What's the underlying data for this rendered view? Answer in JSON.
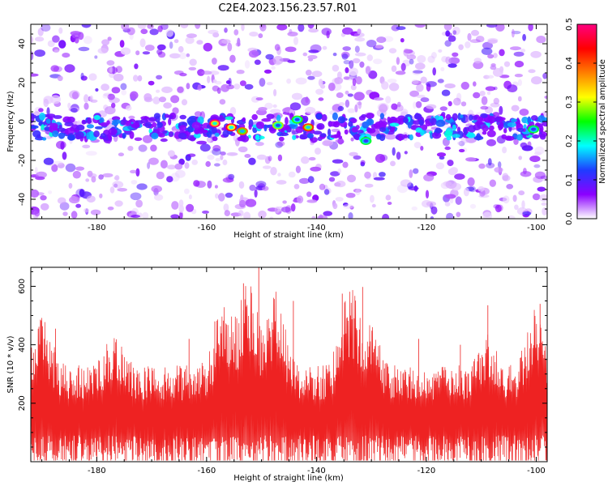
{
  "title": "C2E4.2023.156.23.57.R01",
  "chart_data": [
    {
      "type": "heatmap",
      "xlabel": "Height of straight line (km)",
      "ylabel": "Frequency (Hz)",
      "xlim": [
        -192,
        -98
      ],
      "ylim": [
        -50,
        50
      ],
      "xticks": [
        -180,
        -160,
        -140,
        -120,
        -100
      ],
      "yticks": [
        -40,
        -20,
        0,
        20,
        40
      ],
      "colorbar": {
        "label": "Normalized spectral amplitude",
        "range": [
          0.0,
          0.5
        ],
        "ticks": [
          0.0,
          0.1,
          0.2,
          0.3,
          0.4,
          0.5
        ],
        "colors": [
          "#ffffff",
          "#8b00ff",
          "#1e3cff",
          "#00ffff",
          "#00ff00",
          "#ffff00",
          "#ff7f00",
          "#ff0000",
          "#ff0080"
        ]
      },
      "band": {
        "center_frequency": -3,
        "halfwidth": 6,
        "hotspots": [
          {
            "x": -158.5,
            "y": -1,
            "value": 0.45
          },
          {
            "x": -155.5,
            "y": -3,
            "value": 0.42
          },
          {
            "x": -153.5,
            "y": -5,
            "value": 0.35
          },
          {
            "x": -147,
            "y": -2,
            "value": 0.25
          },
          {
            "x": -143.5,
            "y": 1,
            "value": 0.22
          },
          {
            "x": -141.5,
            "y": -3,
            "value": 0.38
          },
          {
            "x": -131,
            "y": -10,
            "value": 0.2
          },
          {
            "x": -100.5,
            "y": -4,
            "value": 0.2
          }
        ]
      },
      "grid": false,
      "legend": "none"
    },
    {
      "type": "line",
      "xlabel": "Height of straight line (km)",
      "ylabel": "SNR (10 * v/v)",
      "xlim": [
        -192,
        -98
      ],
      "ylim": [
        0,
        665
      ],
      "xticks": [
        -180,
        -160,
        -140,
        -120,
        -100
      ],
      "yticks": [
        200,
        400,
        600
      ],
      "color": "#ee2222",
      "baseline_level": 150,
      "bursts": [
        {
          "x": -190,
          "amplitude": 180
        },
        {
          "x": -177,
          "amplitude": 100
        },
        {
          "x": -157,
          "amplitude": 200
        },
        {
          "x": -152.5,
          "amplitude": 280
        },
        {
          "x": -147.5,
          "amplitude": 260
        },
        {
          "x": -134,
          "amplitude": 260
        },
        {
          "x": -130,
          "amplitude": 120
        },
        {
          "x": -109,
          "amplitude": 110
        },
        {
          "x": -100,
          "amplitude": 200
        }
      ],
      "peaks": [
        {
          "x": -150.5,
          "y": 665
        },
        {
          "x": -153.3,
          "y": 610
        },
        {
          "x": -135.3,
          "y": 575
        },
        {
          "x": -131.6,
          "y": 598
        },
        {
          "x": -144.2,
          "y": 550
        },
        {
          "x": -108.8,
          "y": 535
        },
        {
          "x": -99.3,
          "y": 540
        },
        {
          "x": -158.5,
          "y": 480
        },
        {
          "x": -189.6,
          "y": 420
        },
        {
          "x": -187.5,
          "y": 455
        },
        {
          "x": -163.2,
          "y": 420
        },
        {
          "x": -121.4,
          "y": 420
        },
        {
          "x": -113.8,
          "y": 400
        }
      ],
      "grid": false,
      "legend": "none"
    }
  ]
}
